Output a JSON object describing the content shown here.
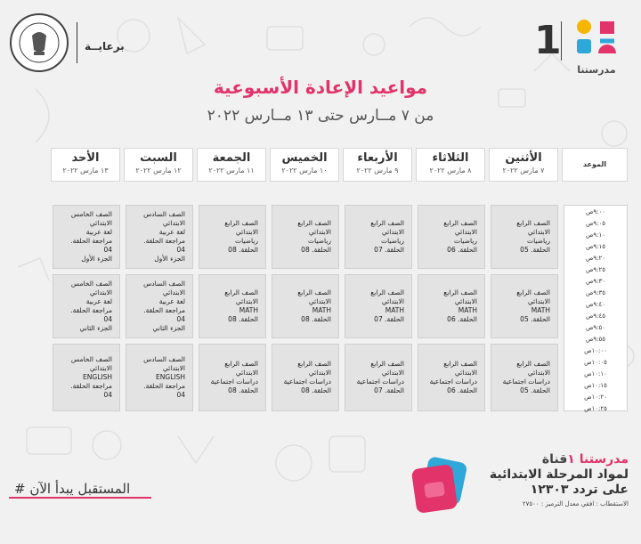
{
  "header": {
    "sponsor_label": "برعايــة",
    "ministry_seal_text": "MINISTRY OF EDUCATION AND TECHNICAL EDUCATION",
    "brand_number": "1",
    "brand_name": "مدرستنا"
  },
  "title": "مواعيد الإعادة الأسبوعية",
  "subtitle": "من ٧ مــارس حتى ١٣ مــارس ٢٠٢٢",
  "time_header": "الموعد",
  "days": [
    {
      "name": "الأثنين",
      "date": "٧ مارس ٢٠٢٢"
    },
    {
      "name": "الثلاثاء",
      "date": "٨ مارس ٢٠٢٢"
    },
    {
      "name": "الأربعاء",
      "date": "٩ مارس ٢٠٢٢"
    },
    {
      "name": "الخميس",
      "date": "١٠ مارس ٢٠٢٢"
    },
    {
      "name": "الجمعة",
      "date": "١١ مارس ٢٠٢٢"
    },
    {
      "name": "السبت",
      "date": "١٢ مارس ٢٠٢٢"
    },
    {
      "name": "الأحد",
      "date": "١٣ مارس ٢٠٢٢"
    }
  ],
  "time_slots": [
    "٩:٠٠ص",
    "٩:٠٥ص",
    "٩:١٠ص",
    "٩:١٥ص",
    "٩:٢٠ص",
    "٩:٢٥ص",
    "٩:٣٠ص",
    "٩:٣٥ص",
    "٩:٤٠ص",
    "٩:٤٥ص",
    "٩:٥٠ص",
    "٩:٥٥ص",
    "١٠:٠٠ص",
    "١٠:٠٥ص",
    "١٠:١٠ص",
    "١٠:١٥ص",
    "١٠:٢٠ص",
    "١٠:٢٥ص"
  ],
  "blocks": [
    [
      [
        "الصف الرابع الابتدائي",
        "رياضيات",
        "الحلقة. 05"
      ],
      [
        "الصف الرابع الابتدائي",
        "رياضيات",
        "الحلقة. 06"
      ],
      [
        "الصف الرابع الابتدائي",
        "رياضيات",
        "الحلقة. 07"
      ],
      [
        "الصف الرابع الابتدائي",
        "رياضيات",
        "الحلقة. 08"
      ],
      [
        "الصف الرابع الابتدائي",
        "رياضيات",
        "الحلقة. 08"
      ],
      [
        "الصف السادس الابتدائي",
        "لغة عربية",
        "مراجعة الحلقة. 04",
        "الجزء الأول"
      ],
      [
        "الصف الخامس الابتدائي",
        "لغة عربية",
        "مراجعة الحلقة. 04",
        "الجزء الأول"
      ]
    ],
    [
      [
        "الصف الرابع الابتدائي",
        "MATH",
        "الحلقة. 05"
      ],
      [
        "الصف الرابع الابتدائي",
        "MATH",
        "الحلقة. 06"
      ],
      [
        "الصف الرابع الابتدائي",
        "MATH",
        "الحلقة. 07"
      ],
      [
        "الصف الرابع الابتدائي",
        "MATH",
        "الحلقة. 08"
      ],
      [
        "الصف الرابع الابتدائي",
        "MATH",
        "الحلقة. 08"
      ],
      [
        "الصف السادس الابتدائي",
        "لغة عربية",
        "مراجعة الحلقة. 04",
        "الجزء الثاني"
      ],
      [
        "الصف الخامس الابتدائي",
        "لغة عربية",
        "مراجعة الحلقة. 04",
        "الجزء الثاني"
      ]
    ],
    [
      [
        "الصف الرابع الابتدائي",
        "دراسات اجتماعية",
        "الحلقة. 05"
      ],
      [
        "الصف الرابع الابتدائي",
        "دراسات اجتماعية",
        "الحلقة. 06"
      ],
      [
        "الصف الرابع الابتدائي",
        "دراسات اجتماعية",
        "الحلقة. 07"
      ],
      [
        "الصف الرابع الابتدائي",
        "دراسات اجتماعية",
        "الحلقة. 08"
      ],
      [
        "الصف الرابع الابتدائي",
        "دراسات اجتماعية",
        "الحلقة. 08"
      ],
      [
        "الصف السادس الابتدائي",
        "ENGLISH",
        "مراجعة الحلقة. 04"
      ],
      [
        "الصف الخامس الابتدائي",
        "ENGLISH",
        "مراجعة الحلقة. 04"
      ]
    ]
  ],
  "footer": {
    "channel_prefix": "قناة ",
    "channel_name": "مدرستنا ١",
    "line2": "لمواد المرحلة الابتدائية",
    "line3": "على تردد ١٢٣٠٣",
    "line4": "الاستقطاب : افقي معدل الترميز : ٢٧٥٠٠",
    "hashtag": "# المستقبل يبدأ الآن"
  },
  "colors": {
    "accent": "#e2336b",
    "cell_bg": "#e3e3e3",
    "background": "#f1f1f1"
  }
}
